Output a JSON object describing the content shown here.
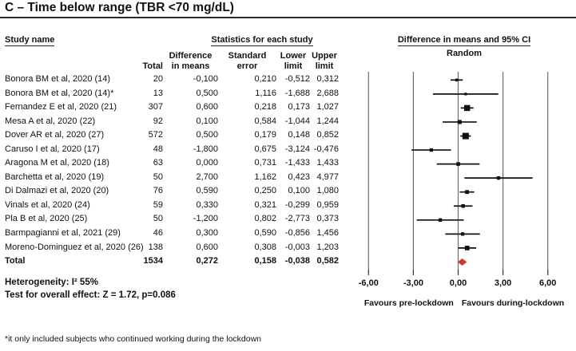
{
  "title": "C – Time below range (TBR <70 mg/dL)",
  "headers": {
    "study": "Study name",
    "stats": "Statistics for each study",
    "plot": "Difference in means and 95% CI",
    "model": "Random",
    "cols": {
      "total": "Total",
      "diff": "Difference\nin means",
      "se": "Standard\nerror",
      "lower": "Lower\nlimit",
      "upper": "Upper\nlimit"
    }
  },
  "chart_data": {
    "type": "forest",
    "x_axis": {
      "tick_labels": [
        "-6,00",
        "-3,00",
        "0,00",
        "3,00",
        "6,00"
      ],
      "tick_values": [
        -6,
        -3,
        0,
        3,
        6
      ],
      "xlim": [
        -6,
        6
      ]
    },
    "studies": [
      {
        "name": "Bonora BM et al, 2020 (14)",
        "total": 20,
        "diff": -0.1,
        "se": 0.21,
        "lower": -0.512,
        "upper": 0.312
      },
      {
        "name": "Bonora BM et al, 2020 (14)*",
        "total": 13,
        "diff": 0.5,
        "se": 1.116,
        "lower": -1.688,
        "upper": 2.688
      },
      {
        "name": "Fernandez E et al, 2020 (21)",
        "total": 307,
        "diff": 0.6,
        "se": 0.218,
        "lower": 0.173,
        "upper": 1.027
      },
      {
        "name": "Mesa A et al, 2020 (22)",
        "total": 92,
        "diff": 0.1,
        "se": 0.584,
        "lower": -1.044,
        "upper": 1.244
      },
      {
        "name": "Dover AR et al, 2020 (27)",
        "total": 572,
        "diff": 0.5,
        "se": 0.179,
        "lower": 0.148,
        "upper": 0.852
      },
      {
        "name": "Caruso I et al, 2020 (17)",
        "total": 48,
        "diff": -1.8,
        "se": 0.675,
        "lower": -3.124,
        "upper": -0.476
      },
      {
        "name": "Aragona M et al, 2020 (18)",
        "total": 63,
        "diff": 0.0,
        "se": 0.731,
        "lower": -1.433,
        "upper": 1.433
      },
      {
        "name": "Barchetta et al, 2020 (19)",
        "total": 50,
        "diff": 2.7,
        "se": 1.162,
        "lower": 0.423,
        "upper": 4.977
      },
      {
        "name": "Di Dalmazi et al, 2020 (20)",
        "total": 76,
        "diff": 0.59,
        "se": 0.25,
        "lower": 0.1,
        "upper": 1.08
      },
      {
        "name": "Vinals et al, 2020 (24)",
        "total": 59,
        "diff": 0.33,
        "se": 0.321,
        "lower": -0.299,
        "upper": 0.959
      },
      {
        "name": "Pla B et al, 2020 (25)",
        "total": 50,
        "diff": -1.2,
        "se": 0.802,
        "lower": -2.773,
        "upper": 0.373
      },
      {
        "name": "Barmpagianni et al, 2021 (29)",
        "total": 46,
        "diff": 0.3,
        "se": 0.59,
        "lower": -0.856,
        "upper": 1.456
      },
      {
        "name": "Moreno-Dominguez et al, 2020 (26)",
        "total": 138,
        "diff": 0.6,
        "se": 0.308,
        "lower": -0.003,
        "upper": 1.203
      }
    ],
    "total_row": {
      "name": "Total",
      "total": 1534,
      "diff": 0.272,
      "se": 0.158,
      "lower": -0.038,
      "upper": 0.582
    },
    "favours_left": "Favours pre-lockdown",
    "favours_right": "Favours during-lockdown",
    "marker_color": "#111111",
    "diamond_color": "#d23a28",
    "gridline_color": "#6e6e6e"
  },
  "footer": {
    "heterogeneity": "Heterogeneity: I² 55%",
    "overall_effect": "Test for overall effect: Z = 1.72, p=0.086",
    "footnote": "*it only included subjects who continued working during the lockdown"
  }
}
